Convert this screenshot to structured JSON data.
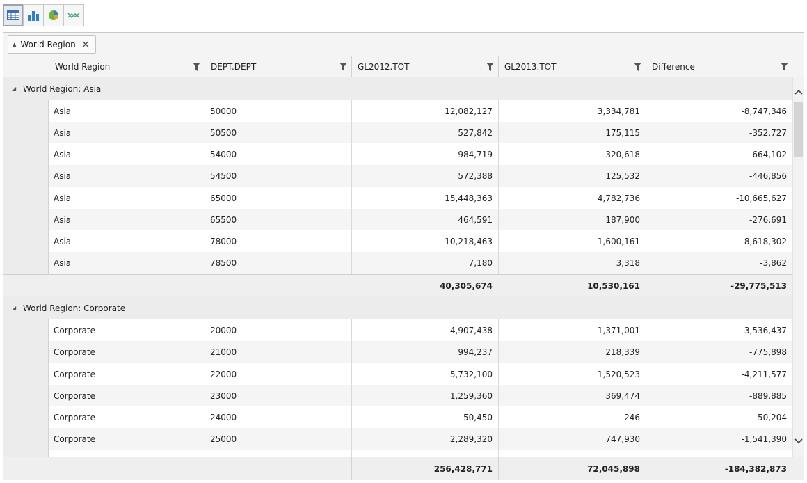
{
  "toolbar": {
    "buttons": [
      {
        "icon": "table-icon",
        "active": true
      },
      {
        "icon": "bar-chart-icon",
        "active": false
      },
      {
        "icon": "pie-chart-icon",
        "active": false
      },
      {
        "icon": "line-chart-icon",
        "active": false
      }
    ]
  },
  "group_panel": {
    "chip_label": "World Region",
    "close_glyph": "✕"
  },
  "columns": [
    {
      "label": "World Region"
    },
    {
      "label": "DEPT.DEPT"
    },
    {
      "label": "GL2012.TOT"
    },
    {
      "label": "GL2013.TOT"
    },
    {
      "label": "Difference"
    }
  ],
  "groups": [
    {
      "label": "World Region: Asia",
      "rows": [
        [
          "Asia",
          "50000",
          "12,082,127",
          "3,334,781",
          "-8,747,346"
        ],
        [
          "Asia",
          "50500",
          "527,842",
          "175,115",
          "-352,727"
        ],
        [
          "Asia",
          "54000",
          "984,719",
          "320,618",
          "-664,102"
        ],
        [
          "Asia",
          "54500",
          "572,388",
          "125,532",
          "-446,856"
        ],
        [
          "Asia",
          "65000",
          "15,448,363",
          "4,782,736",
          "-10,665,627"
        ],
        [
          "Asia",
          "65500",
          "464,591",
          "187,900",
          "-276,691"
        ],
        [
          "Asia",
          "78000",
          "10,218,463",
          "1,600,161",
          "-8,618,302"
        ],
        [
          "Asia",
          "78500",
          "7,180",
          "3,318",
          "-3,862"
        ]
      ],
      "totals": [
        "40,305,674",
        "10,530,161",
        "-29,775,513"
      ]
    },
    {
      "label": "World Region: Corporate",
      "rows": [
        [
          "Corporate",
          "20000",
          "4,907,438",
          "1,371,001",
          "-3,536,437"
        ],
        [
          "Corporate",
          "21000",
          "994,237",
          "218,339",
          "-775,898"
        ],
        [
          "Corporate",
          "22000",
          "5,732,100",
          "1,520,523",
          "-4,211,577"
        ],
        [
          "Corporate",
          "23000",
          "1,259,360",
          "369,474",
          "-889,885"
        ],
        [
          "Corporate",
          "24000",
          "50,450",
          "246",
          "-50,204"
        ],
        [
          "Corporate",
          "25000",
          "2,289,320",
          "747,930",
          "-1,541,390"
        ]
      ]
    }
  ],
  "footer": {
    "totals": [
      "256,428,771",
      "72,045,898",
      "-184,382,873"
    ]
  }
}
